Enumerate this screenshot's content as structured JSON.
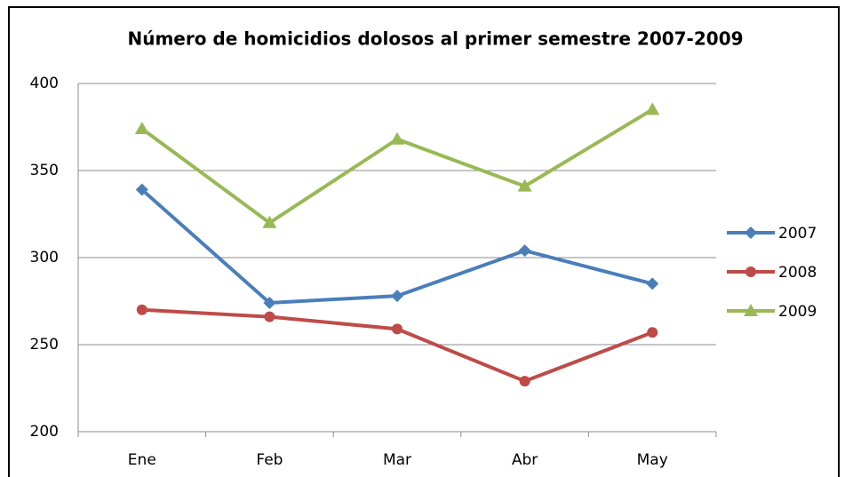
{
  "chart_data": {
    "type": "line",
    "title": "Número de homicidios dolosos al primer semestre 2007-2009",
    "categories": [
      "Ene",
      "Feb",
      "Mar",
      "Abr",
      "May"
    ],
    "series": [
      {
        "name": "2007",
        "color": "#4a7ebb",
        "marker": "diamond",
        "values": [
          339,
          274,
          278,
          304,
          285
        ]
      },
      {
        "name": "2008",
        "color": "#be4b48",
        "marker": "circle",
        "values": [
          270,
          266,
          259,
          229,
          257
        ]
      },
      {
        "name": "2009",
        "color": "#98b954",
        "marker": "triangle",
        "values": [
          374,
          320,
          368,
          341,
          385
        ]
      }
    ],
    "ylim": [
      200,
      400
    ],
    "yticks": [
      200,
      250,
      300,
      350,
      400
    ],
    "grid": true,
    "legend": "right"
  }
}
